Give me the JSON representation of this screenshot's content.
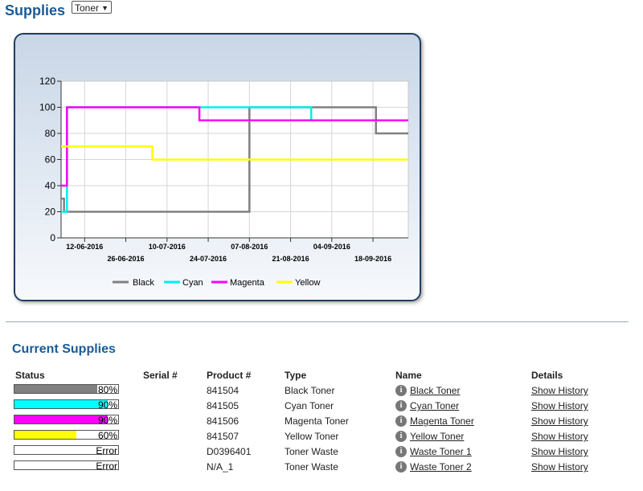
{
  "header": {
    "title": "Supplies",
    "select_value": "Toner"
  },
  "chart": {
    "legend": [
      "Black",
      "Cyan",
      "Magenta",
      "Yellow"
    ]
  },
  "chart_data": {
    "type": "line",
    "step": true,
    "x_type": "date",
    "xlim": [
      "2016-06-04",
      "2016-09-30"
    ],
    "ylim": [
      0,
      120
    ],
    "yticks": [
      0,
      20,
      40,
      60,
      80,
      100,
      120
    ],
    "xtick_labels": [
      {
        "date": "2016-06-12",
        "label": "12-06-2016",
        "row": 0
      },
      {
        "date": "2016-06-26",
        "label": "26-06-2016",
        "row": 1
      },
      {
        "date": "2016-07-10",
        "label": "10-07-2016",
        "row": 0
      },
      {
        "date": "2016-07-24",
        "label": "24-07-2016",
        "row": 1
      },
      {
        "date": "2016-08-07",
        "label": "07-08-2016",
        "row": 0
      },
      {
        "date": "2016-08-21",
        "label": "21-08-2016",
        "row": 1
      },
      {
        "date": "2016-09-04",
        "label": "04-09-2016",
        "row": 0
      },
      {
        "date": "2016-09-18",
        "label": "18-09-2016",
        "row": 1
      }
    ],
    "grid": true,
    "legend_position": "bottom",
    "series": [
      {
        "name": "Black",
        "color": "#808080",
        "points": [
          [
            "2016-06-04",
            30
          ],
          [
            "2016-06-05",
            20
          ],
          [
            "2016-08-07",
            100
          ],
          [
            "2016-09-19",
            80
          ],
          [
            "2016-09-30",
            80
          ]
        ]
      },
      {
        "name": "Cyan",
        "color": "#00f0f0",
        "points": [
          [
            "2016-06-04",
            20
          ],
          [
            "2016-06-06",
            100
          ],
          [
            "2016-08-28",
            90
          ],
          [
            "2016-09-30",
            90
          ]
        ]
      },
      {
        "name": "Magenta",
        "color": "#ff00ff",
        "points": [
          [
            "2016-06-04",
            40
          ],
          [
            "2016-06-06",
            100
          ],
          [
            "2016-07-21",
            90
          ],
          [
            "2016-09-30",
            90
          ]
        ]
      },
      {
        "name": "Yellow",
        "color": "#ffff00",
        "points": [
          [
            "2016-06-04",
            70
          ],
          [
            "2016-07-05",
            60
          ],
          [
            "2016-09-30",
            60
          ]
        ]
      }
    ]
  },
  "current_supplies": {
    "title": "Current Supplies",
    "headers": {
      "status": "Status",
      "serial": "Serial #",
      "product": "Product #",
      "type": "Type",
      "name": "Name",
      "details": "Details"
    },
    "rows": [
      {
        "status_text": "80%",
        "level": 0.8,
        "color": "#808080",
        "serial": "",
        "product": "841504",
        "type": "Black Toner",
        "name": "Black Toner",
        "details": "Show History"
      },
      {
        "status_text": "90%",
        "level": 0.9,
        "color": "#00ffff",
        "serial": "",
        "product": "841505",
        "type": "Cyan Toner",
        "name": "Cyan Toner",
        "details": "Show History"
      },
      {
        "status_text": "90%",
        "level": 0.9,
        "color": "#ff00ff",
        "serial": "",
        "product": "841506",
        "type": "Magenta Toner",
        "name": "Magenta Toner",
        "details": "Show History"
      },
      {
        "status_text": "60%",
        "level": 0.6,
        "color": "#ffff00",
        "serial": "",
        "product": "841507",
        "type": "Yellow Toner",
        "name": "Yellow Toner",
        "details": "Show History"
      },
      {
        "status_text": "Error",
        "level": 0,
        "color": "#ffffff",
        "serial": "",
        "product": "D0396401",
        "type": "Toner Waste",
        "name": "Waste Toner 1",
        "details": "Show History"
      },
      {
        "status_text": "Error",
        "level": 0,
        "color": "#ffffff",
        "serial": "",
        "product": "N/A_1",
        "type": "Toner Waste",
        "name": "Waste Toner 2",
        "details": "Show History"
      }
    ]
  }
}
